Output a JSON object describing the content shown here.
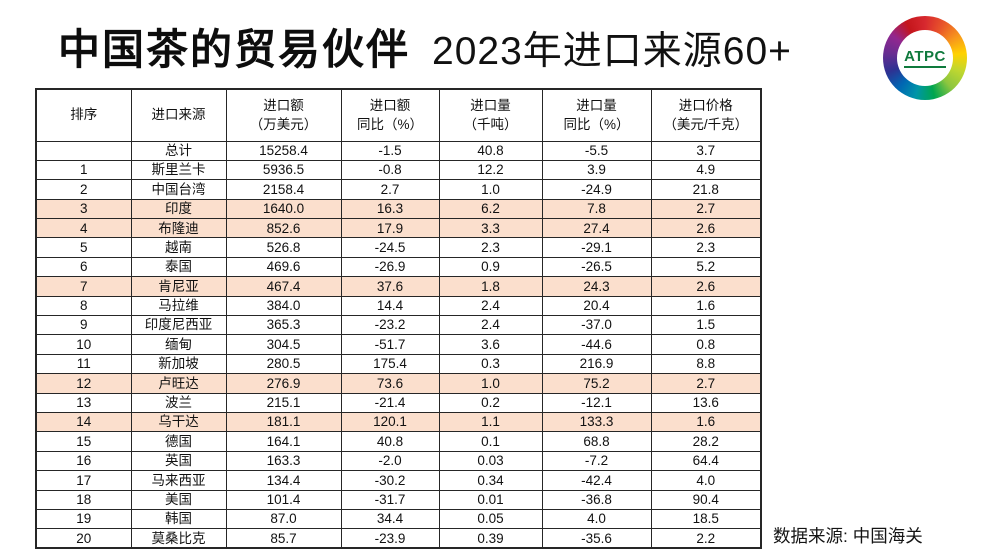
{
  "page": {
    "title_bold": "中国茶的贸易伙伴",
    "title_regular": "2023年进口来源60+",
    "footer_source": "数据来源: 中国海关",
    "logo_text": "ATPC"
  },
  "colors": {
    "highlight_row": "#fbdfcd",
    "table_border": "#262626",
    "logo_text_green": "#0f7a3d"
  },
  "chart_data": {
    "type": "table",
    "title": "中国茶的贸易伙伴 2023年进口来源60+",
    "source_note": "数据来源: 中国海关",
    "columns": [
      "排序",
      "进口来源",
      "进口额\n（万美元）",
      "进口额\n同比（%）",
      "进口量\n（千吨）",
      "进口量\n同比（%）",
      "进口价格\n（美元/千克）"
    ],
    "highlighted_ranks": [
      "3",
      "4",
      "7",
      "12",
      "14"
    ],
    "rows": [
      [
        "",
        "总计",
        "15258.4",
        "-1.5",
        "40.8",
        "-5.5",
        "3.7"
      ],
      [
        "1",
        "斯里兰卡",
        "5936.5",
        "-0.8",
        "12.2",
        "3.9",
        "4.9"
      ],
      [
        "2",
        "中国台湾",
        "2158.4",
        "2.7",
        "1.0",
        "-24.9",
        "21.8"
      ],
      [
        "3",
        "印度",
        "1640.0",
        "16.3",
        "6.2",
        "7.8",
        "2.7"
      ],
      [
        "4",
        "布隆迪",
        "852.6",
        "17.9",
        "3.3",
        "27.4",
        "2.6"
      ],
      [
        "5",
        "越南",
        "526.8",
        "-24.5",
        "2.3",
        "-29.1",
        "2.3"
      ],
      [
        "6",
        "泰国",
        "469.6",
        "-26.9",
        "0.9",
        "-26.5",
        "5.2"
      ],
      [
        "7",
        "肯尼亚",
        "467.4",
        "37.6",
        "1.8",
        "24.3",
        "2.6"
      ],
      [
        "8",
        "马拉维",
        "384.0",
        "14.4",
        "2.4",
        "20.4",
        "1.6"
      ],
      [
        "9",
        "印度尼西亚",
        "365.3",
        "-23.2",
        "2.4",
        "-37.0",
        "1.5"
      ],
      [
        "10",
        "缅甸",
        "304.5",
        "-51.7",
        "3.6",
        "-44.6",
        "0.8"
      ],
      [
        "11",
        "新加坡",
        "280.5",
        "175.4",
        "0.3",
        "216.9",
        "8.8"
      ],
      [
        "12",
        "卢旺达",
        "276.9",
        "73.6",
        "1.0",
        "75.2",
        "2.7"
      ],
      [
        "13",
        "波兰",
        "215.1",
        "-21.4",
        "0.2",
        "-12.1",
        "13.6"
      ],
      [
        "14",
        "乌干达",
        "181.1",
        "120.1",
        "1.1",
        "133.3",
        "1.6"
      ],
      [
        "15",
        "德国",
        "164.1",
        "40.8",
        "0.1",
        "68.8",
        "28.2"
      ],
      [
        "16",
        "英国",
        "163.3",
        "-2.0",
        "0.03",
        "-7.2",
        "64.4"
      ],
      [
        "17",
        "马来西亚",
        "134.4",
        "-30.2",
        "0.34",
        "-42.4",
        "4.0"
      ],
      [
        "18",
        "美国",
        "101.4",
        "-31.7",
        "0.01",
        "-36.8",
        "90.4"
      ],
      [
        "19",
        "韩国",
        "87.0",
        "34.4",
        "0.05",
        "4.0",
        "18.5"
      ],
      [
        "20",
        "莫桑比克",
        "85.7",
        "-23.9",
        "0.39",
        "-35.6",
        "2.2"
      ]
    ]
  }
}
